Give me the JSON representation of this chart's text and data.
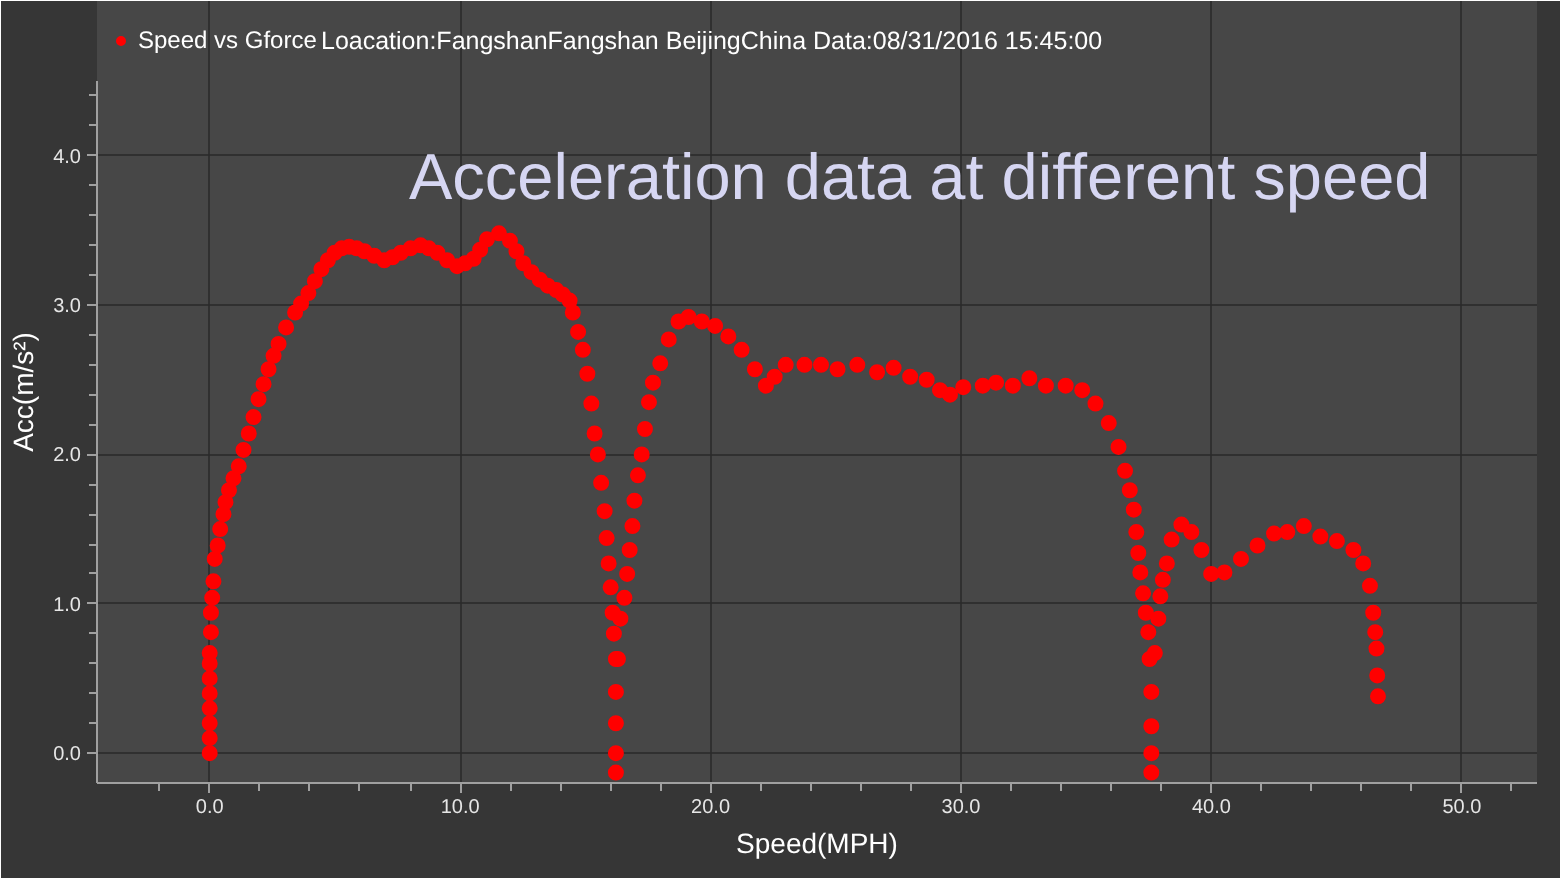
{
  "chart_data": {
    "type": "scatter",
    "title": "Acceleration data at different speed",
    "subtitle": "Loacation:FangshanFangshan BeijingChina Data:08/31/2016 15:45:00",
    "xlabel": "Speed(MPH)",
    "ylabel": "Acc(m/s²)",
    "xlim": [
      -4.5,
      53
    ],
    "ylim": [
      -0.2,
      4.5
    ],
    "xticks": [
      {
        "value": -2,
        "label": null
      },
      {
        "value": 0,
        "label": "0.0"
      },
      {
        "value": 2,
        "label": null
      },
      {
        "value": 4,
        "label": null
      },
      {
        "value": 6,
        "label": null
      },
      {
        "value": 8,
        "label": null
      },
      {
        "value": 10,
        "label": "10.0"
      },
      {
        "value": 12,
        "label": null
      },
      {
        "value": 14,
        "label": null
      },
      {
        "value": 16,
        "label": null
      },
      {
        "value": 18,
        "label": null
      },
      {
        "value": 20,
        "label": "20.0"
      },
      {
        "value": 22,
        "label": null
      },
      {
        "value": 24,
        "label": null
      },
      {
        "value": 26,
        "label": null
      },
      {
        "value": 28,
        "label": null
      },
      {
        "value": 30,
        "label": "30.0"
      },
      {
        "value": 32,
        "label": null
      },
      {
        "value": 34,
        "label": null
      },
      {
        "value": 36,
        "label": null
      },
      {
        "value": 38,
        "label": null
      },
      {
        "value": 40,
        "label": "40.0"
      },
      {
        "value": 42,
        "label": null
      },
      {
        "value": 44,
        "label": null
      },
      {
        "value": 46,
        "label": null
      },
      {
        "value": 48,
        "label": null
      },
      {
        "value": 50,
        "label": "50.0"
      },
      {
        "value": 52,
        "label": null
      }
    ],
    "yticks": [
      {
        "value": 0,
        "label": "0.0"
      },
      {
        "value": 0.2,
        "label": null
      },
      {
        "value": 0.4,
        "label": null
      },
      {
        "value": 0.6,
        "label": null
      },
      {
        "value": 0.8,
        "label": null
      },
      {
        "value": 1,
        "label": "1.0"
      },
      {
        "value": 1.2,
        "label": null
      },
      {
        "value": 1.4,
        "label": null
      },
      {
        "value": 1.6,
        "label": null
      },
      {
        "value": 1.8,
        "label": null
      },
      {
        "value": 2,
        "label": "2.0"
      },
      {
        "value": 2.2,
        "label": null
      },
      {
        "value": 2.4,
        "label": null
      },
      {
        "value": 2.6,
        "label": null
      },
      {
        "value": 2.8,
        "label": null
      },
      {
        "value": 3,
        "label": "3.0"
      },
      {
        "value": 3.2,
        "label": null
      },
      {
        "value": 3.4,
        "label": null
      },
      {
        "value": 3.6,
        "label": null
      },
      {
        "value": 3.8,
        "label": null
      },
      {
        "value": 4,
        "label": "4.0"
      },
      {
        "value": 4.2,
        "label": null
      },
      {
        "value": 4.4,
        "label": null
      }
    ],
    "grid": true,
    "legend": "top left",
    "marker": "circle",
    "series": [
      {
        "name": "Speed vs Gforce",
        "color": "#ff0000",
        "x": [
          0,
          0,
          0,
          0,
          0,
          0,
          0,
          0,
          0.05,
          0.05,
          0.1,
          0.15,
          0.2,
          0.32,
          0.42,
          0.55,
          0.63,
          0.77,
          0.95,
          1.16,
          1.35,
          1.56,
          1.75,
          1.95,
          2.15,
          2.35,
          2.55,
          2.75,
          3.05,
          3.41,
          3.65,
          3.94,
          4.2,
          4.46,
          4.72,
          4.99,
          5.27,
          5.57,
          5.87,
          6.18,
          6.57,
          6.97,
          7.3,
          7.63,
          8.02,
          8.42,
          8.75,
          9.09,
          9.48,
          9.88,
          10.2,
          10.54,
          10.8,
          11.07,
          11.55,
          11.99,
          12.25,
          12.52,
          12.85,
          13.18,
          13.5,
          13.84,
          14.1,
          14.37,
          14.5,
          14.71,
          14.9,
          15.08,
          15.24,
          15.37,
          15.5,
          15.63,
          15.77,
          15.85,
          15.93,
          16.01,
          16.09,
          16.14,
          16.22,
          16.22,
          16.22,
          16.22,
          16.22,
          16.3,
          16.4,
          16.56,
          16.67,
          16.77,
          16.88,
          16.96,
          17.1,
          17.25,
          17.38,
          17.54,
          17.7,
          17.99,
          18.33,
          18.72,
          19.12,
          19.65,
          20.18,
          20.71,
          21.24,
          21.77,
          22.21,
          22.56,
          23.0,
          23.75,
          24.41,
          25.07,
          25.86,
          26.65,
          27.31,
          27.97,
          28.63,
          29.16,
          29.56,
          30.09,
          30.87,
          31.4,
          32.07,
          32.73,
          33.39,
          34.18,
          34.84,
          35.37,
          35.9,
          36.29,
          36.55,
          36.74,
          36.9,
          37.0,
          37.08,
          37.16,
          37.27,
          37.38,
          37.48,
          37.53,
          37.6,
          37.6,
          37.6,
          37.6,
          37.74,
          37.88,
          37.96,
          38.06,
          38.22,
          38.41,
          38.8,
          39.2,
          39.6,
          39.99,
          40.52,
          41.18,
          41.84,
          42.5,
          43.03,
          43.69,
          44.35,
          45.01,
          45.67,
          46.06,
          46.33,
          46.46,
          46.54,
          46.59,
          46.62,
          46.65
        ],
        "values": [
          0,
          0.1,
          0.2,
          0.3,
          0.4,
          0.5,
          0.6,
          0.67,
          0.81,
          0.94,
          1.04,
          1.15,
          1.3,
          1.39,
          1.5,
          1.6,
          1.68,
          1.76,
          1.84,
          1.92,
          2.03,
          2.14,
          2.25,
          2.37,
          2.47,
          2.57,
          2.66,
          2.74,
          2.85,
          2.95,
          3.01,
          3.08,
          3.16,
          3.24,
          3.3,
          3.35,
          3.38,
          3.39,
          3.38,
          3.36,
          3.33,
          3.3,
          3.32,
          3.35,
          3.38,
          3.4,
          3.38,
          3.35,
          3.3,
          3.26,
          3.28,
          3.31,
          3.37,
          3.44,
          3.48,
          3.43,
          3.36,
          3.28,
          3.22,
          3.17,
          3.13,
          3.1,
          3.07,
          3.03,
          2.95,
          2.82,
          2.7,
          2.54,
          2.34,
          2.14,
          2.0,
          1.81,
          1.62,
          1.44,
          1.27,
          1.11,
          0.94,
          0.8,
          0.63,
          0.41,
          0.2,
          0,
          -0.13,
          0.63,
          0.9,
          1.04,
          1.2,
          1.36,
          1.52,
          1.69,
          1.86,
          2.0,
          2.17,
          2.35,
          2.48,
          2.61,
          2.77,
          2.89,
          2.92,
          2.89,
          2.86,
          2.79,
          2.7,
          2.57,
          2.46,
          2.52,
          2.6,
          2.6,
          2.6,
          2.57,
          2.6,
          2.55,
          2.58,
          2.52,
          2.5,
          2.43,
          2.4,
          2.45,
          2.46,
          2.48,
          2.46,
          2.51,
          2.46,
          2.46,
          2.43,
          2.34,
          2.21,
          2.05,
          1.89,
          1.76,
          1.63,
          1.48,
          1.34,
          1.21,
          1.07,
          0.94,
          0.81,
          0.63,
          0.41,
          0.18,
          0,
          -0.13,
          0.67,
          0.9,
          1.05,
          1.16,
          1.27,
          1.43,
          1.53,
          1.48,
          1.36,
          1.2,
          1.21,
          1.3,
          1.39,
          1.47,
          1.48,
          1.52,
          1.45,
          1.42,
          1.36,
          1.27,
          1.12,
          0.94,
          0.81,
          0.7,
          0.52,
          0.38
        ]
      }
    ]
  }
}
